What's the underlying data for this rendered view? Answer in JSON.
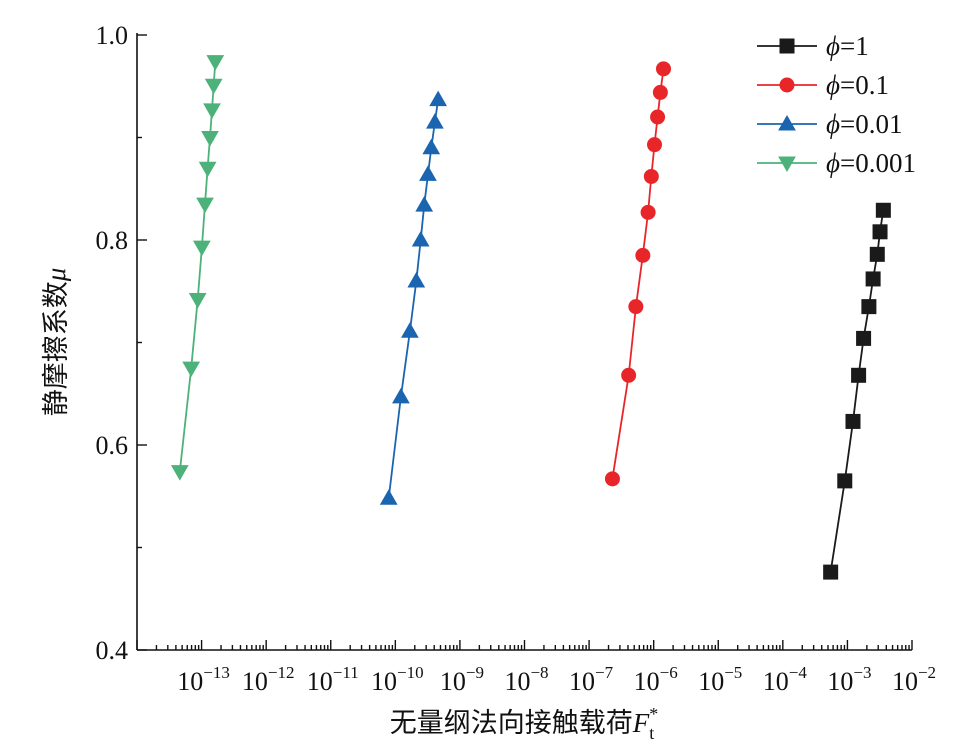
{
  "chart_data": {
    "type": "line",
    "title": "",
    "xlabel": "无量纲法向接触载荷",
    "xlabel_symbol": "F",
    "xlabel_sub": "t",
    "xlabel_sup": "*",
    "ylabel": "静摩擦系数",
    "ylabel_symbol": "μ",
    "x_scale": "log",
    "xlim": [
      1e-14,
      0.01
    ],
    "ylim": [
      0.4,
      1.0
    ],
    "y_ticks": [
      "0.4",
      "0.6",
      "0.8",
      "1.0"
    ],
    "x_ticks": [
      {
        "base": "10",
        "exp": "−13"
      },
      {
        "base": "10",
        "exp": "−12"
      },
      {
        "base": "10",
        "exp": "−11"
      },
      {
        "base": "10",
        "exp": "−10"
      },
      {
        "base": "10",
        "exp": "−9"
      },
      {
        "base": "10",
        "exp": "−8"
      },
      {
        "base": "10",
        "exp": "−7"
      },
      {
        "base": "10",
        "exp": "−6"
      },
      {
        "base": "10",
        "exp": "−5"
      },
      {
        "base": "10",
        "exp": "−4"
      },
      {
        "base": "10",
        "exp": "−3"
      },
      {
        "base": "10",
        "exp": "−2"
      }
    ],
    "legend_position": "top-right",
    "series": [
      {
        "name": "ϕ=1",
        "legend_symbol": "ϕ",
        "legend_value": "=1",
        "color": "#1a1a1a",
        "marker": "square",
        "x": [
          0.00055,
          0.00091,
          0.00122,
          0.00149,
          0.00178,
          0.00215,
          0.0025,
          0.0029,
          0.0032,
          0.0036
        ],
        "y": [
          0.476,
          0.565,
          0.623,
          0.668,
          0.704,
          0.735,
          0.762,
          0.786,
          0.808,
          0.829
        ]
      },
      {
        "name": "ϕ=0.1",
        "legend_symbol": "ϕ",
        "legend_value": "=0.1",
        "color": "#e8262a",
        "marker": "circle",
        "x": [
          2.3e-07,
          4.1e-07,
          5.3e-07,
          6.8e-07,
          8.2e-07,
          9.2e-07,
          1.03e-06,
          1.15e-06,
          1.27e-06,
          1.42e-06
        ],
        "y": [
          0.567,
          0.668,
          0.735,
          0.785,
          0.827,
          0.862,
          0.893,
          0.92,
          0.944,
          0.967
        ]
      },
      {
        "name": "ϕ=0.01",
        "legend_symbol": "ϕ",
        "legend_value": "=0.01",
        "color": "#1a64b0",
        "marker": "triangle-up",
        "x": [
          7.9e-11,
          1.22e-10,
          1.68e-10,
          2.11e-10,
          2.47e-10,
          2.8e-10,
          3.2e-10,
          3.6e-10,
          4.1e-10,
          4.6e-10
        ],
        "y": [
          0.548,
          0.647,
          0.711,
          0.76,
          0.8,
          0.834,
          0.864,
          0.89,
          0.915,
          0.937
        ]
      },
      {
        "name": "ϕ=0.001",
        "legend_symbol": "ϕ",
        "legend_value": "=0.001",
        "color": "#4cb27a",
        "marker": "triangle-down",
        "x": [
          4.6e-14,
          6.9e-14,
          8.7e-14,
          1.01e-13,
          1.13e-13,
          1.24e-13,
          1.35e-13,
          1.45e-13,
          1.54e-13,
          1.63e-13
        ],
        "y": [
          0.574,
          0.675,
          0.742,
          0.793,
          0.835,
          0.87,
          0.9,
          0.927,
          0.951,
          0.974
        ]
      }
    ]
  }
}
